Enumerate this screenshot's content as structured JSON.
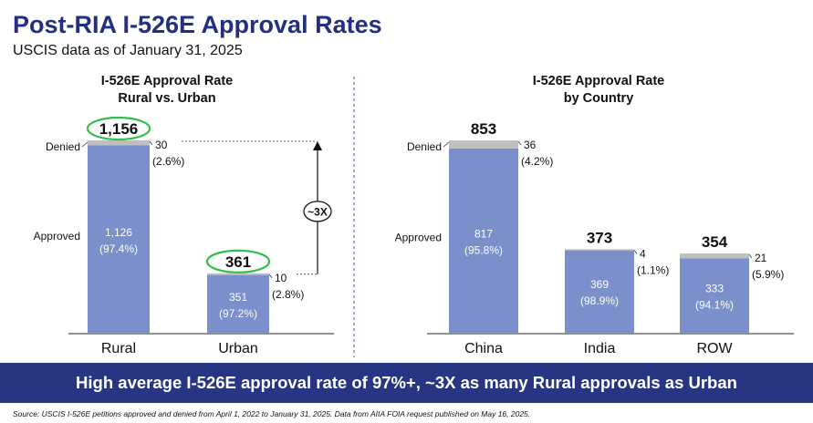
{
  "title": "Post-RIA I-526E Approval Rates",
  "subtitle": "USCIS data as of January 31, 2025",
  "banner": "High average I-526E approval rate of 97%+, ~3X as many Rural approvals as Urban",
  "source": "Source: USCIS I-526E petitions approved and denied from April 1, 2022 to January 31, 2025. Data from AIIA FOIA request published on May 16, 2025.",
  "colors": {
    "approved": "#7b8fcb",
    "denied": "#bfbfbf",
    "highlight": "#2fbf4a",
    "navy": "#283583"
  },
  "chart_data": [
    {
      "type": "bar",
      "stacked": true,
      "title_line1": "I-526E Approval Rate",
      "title_line2": "Rural vs. Urban",
      "categories": [
        "Rural",
        "Urban"
      ],
      "series": [
        {
          "name": "Approved",
          "values": [
            1126,
            351
          ],
          "labels": [
            "1,126",
            "351"
          ],
          "pct": [
            "(97.4%)",
            "(97.2%)"
          ]
        },
        {
          "name": "Denied",
          "values": [
            30,
            10
          ],
          "labels": [
            "30",
            "10"
          ],
          "pct": [
            "(2.6%)",
            "(2.8%)"
          ]
        }
      ],
      "totals": [
        "1,156",
        "361"
      ],
      "total_values": [
        1156,
        361
      ],
      "highlighted_totals": true,
      "annotation": "~3X"
    },
    {
      "type": "bar",
      "stacked": true,
      "title_line1": "I-526E Approval Rate",
      "title_line2": "by Country",
      "categories": [
        "China",
        "India",
        "ROW"
      ],
      "series": [
        {
          "name": "Approved",
          "values": [
            817,
            369,
            333
          ],
          "labels": [
            "817",
            "369",
            "333"
          ],
          "pct": [
            "(95.8%)",
            "(98.9%)",
            "(94.1%)"
          ]
        },
        {
          "name": "Denied",
          "values": [
            36,
            4,
            21
          ],
          "labels": [
            "36",
            "4",
            "21"
          ],
          "pct": [
            "(4.2%)",
            "(1.1%)",
            "(5.9%)"
          ]
        }
      ],
      "totals": [
        "853",
        "373",
        "354"
      ],
      "total_values": [
        853,
        373,
        354
      ]
    }
  ]
}
